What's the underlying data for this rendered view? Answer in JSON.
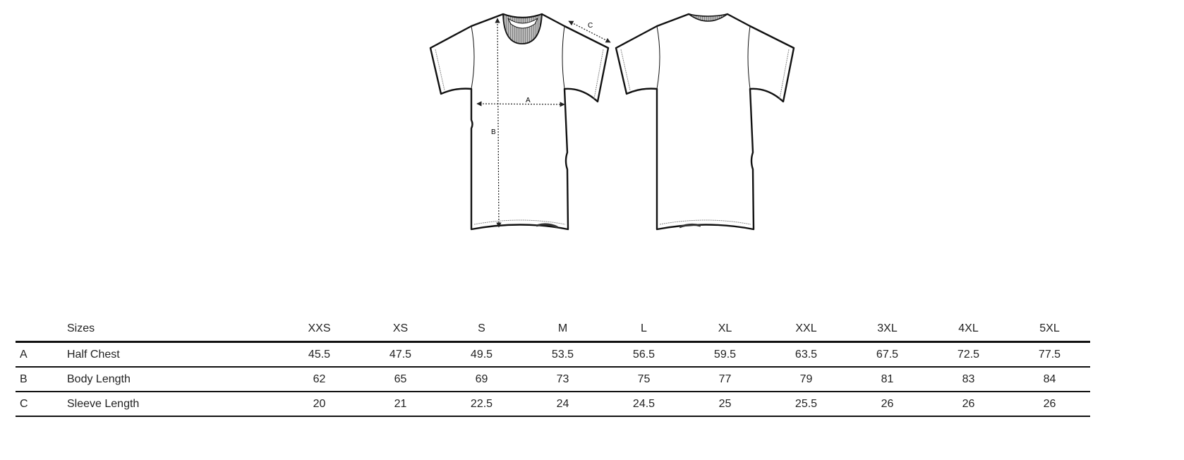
{
  "diagram": {
    "front_labels": {
      "chest": "A",
      "body": "B",
      "sleeve": "C"
    }
  },
  "table": {
    "header_label": "Sizes",
    "sizes": [
      "XXS",
      "XS",
      "S",
      "M",
      "L",
      "XL",
      "XXL",
      "3XL",
      "4XL",
      "5XL"
    ],
    "rows": [
      {
        "key": "A",
        "label": "Half Chest",
        "values": [
          "45.5",
          "47.5",
          "49.5",
          "53.5",
          "56.5",
          "59.5",
          "63.5",
          "67.5",
          "72.5",
          "77.5"
        ]
      },
      {
        "key": "B",
        "label": "Body Length",
        "values": [
          "62",
          "65",
          "69",
          "73",
          "75",
          "77",
          "79",
          "81",
          "83",
          "84"
        ]
      },
      {
        "key": "C",
        "label": "Sleeve Length",
        "values": [
          "20",
          "21",
          "22.5",
          "24",
          "24.5",
          "25",
          "25.5",
          "26",
          "26",
          "26"
        ]
      }
    ]
  }
}
